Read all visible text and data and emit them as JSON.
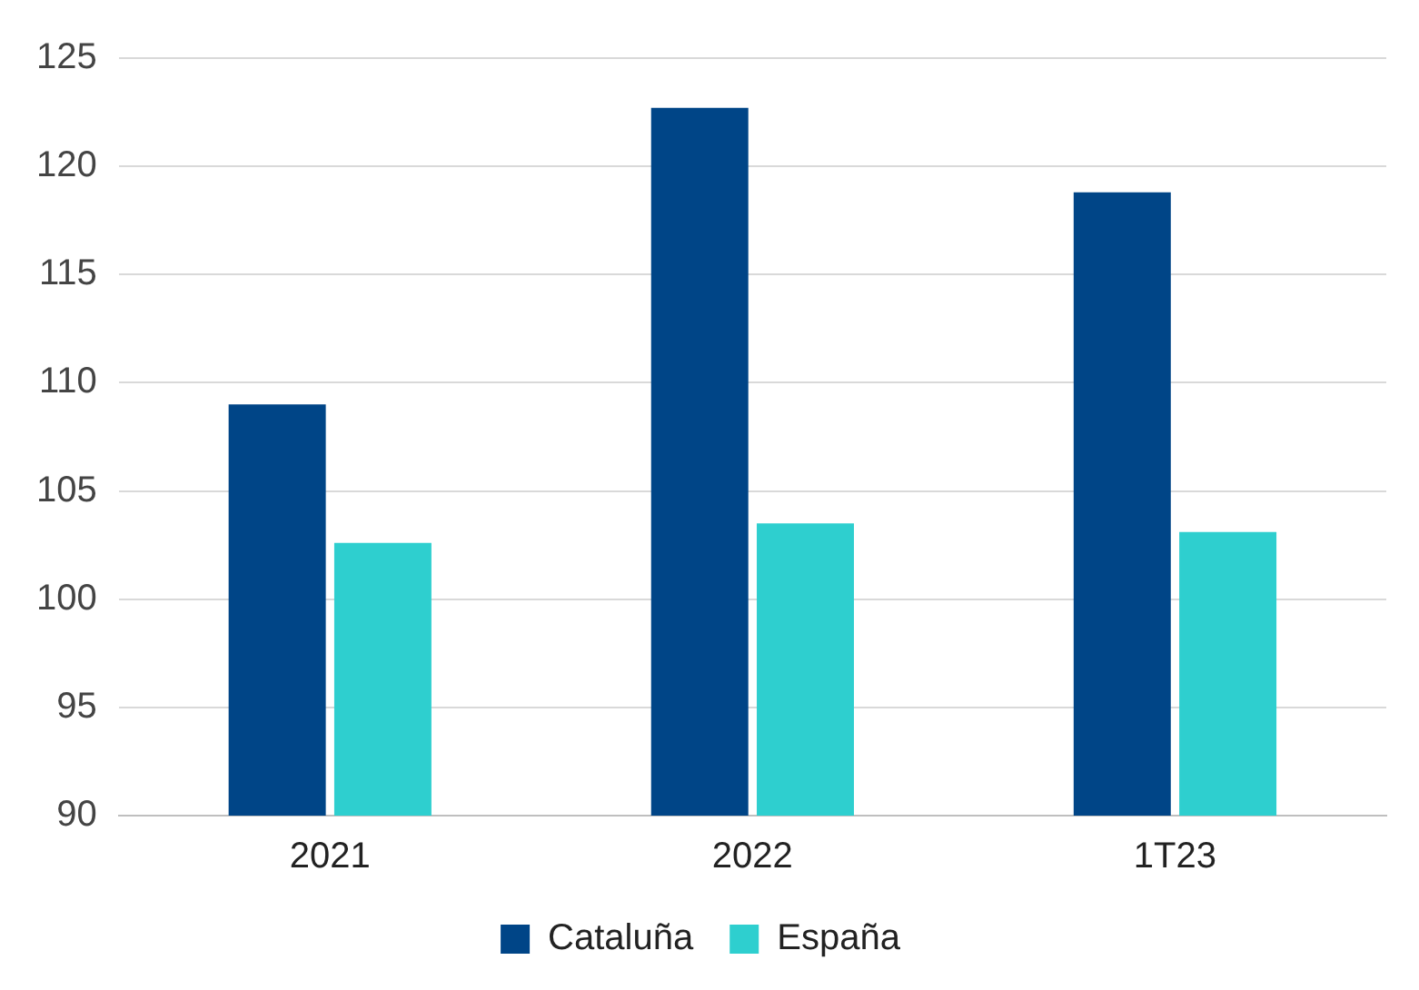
{
  "chart_data": {
    "type": "bar",
    "categories": [
      "2021",
      "2022",
      "1T23"
    ],
    "series": [
      {
        "name": "Cataluña",
        "color": "#004587",
        "values": [
          109.0,
          122.7,
          118.8
        ]
      },
      {
        "name": "España",
        "color": "#2ecfcf",
        "values": [
          102.6,
          103.5,
          103.1
        ]
      }
    ],
    "ylim": [
      90,
      125
    ],
    "yticks": [
      90,
      95,
      100,
      105,
      110,
      115,
      120,
      125
    ],
    "grid": "y",
    "legend": "bottom"
  }
}
